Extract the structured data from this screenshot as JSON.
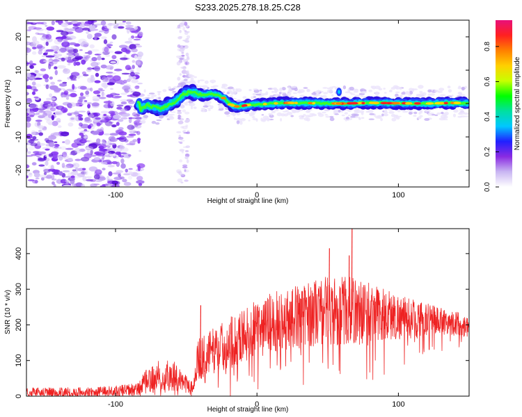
{
  "title": "S233.2025.278.18.25.C28",
  "chart_data": [
    {
      "type": "heatmap",
      "name": "spectrogram",
      "xlabel": "Height of straight line (km)",
      "ylabel": "Frequency (Hz)",
      "xlim": [
        -163,
        150
      ],
      "ylim": [
        -25,
        25
      ],
      "xticks": [
        -100,
        0,
        100
      ],
      "yticks": [
        -20,
        -10,
        0,
        10,
        20
      ],
      "colorbar": {
        "label": "Normalized spectral amplitude",
        "range": [
          0,
          0.95
        ],
        "ticks": [
          "0.0",
          "0.2",
          "0.4",
          "0.6",
          "0.8"
        ],
        "colors": [
          "#ffffff",
          "#c9b6f2",
          "#8a2be2",
          "#2020ff",
          "#00c8ff",
          "#00e0a0",
          "#00ff00",
          "#c8ff00",
          "#ffd000",
          "#ff8000",
          "#ff2020",
          "#e8107a"
        ]
      },
      "ridge": {
        "description_points_x": [
          -83,
          -78,
          -73,
          -68,
          -63,
          -58,
          -53,
          -48,
          -43,
          -38,
          -33,
          -28,
          -23,
          -18,
          -13,
          -8,
          0,
          20,
          40,
          60,
          80,
          100,
          120,
          140,
          148
        ],
        "description_points_y": [
          -2,
          -0.5,
          -1,
          -1.5,
          -0.5,
          0.5,
          2.5,
          3.5,
          3,
          2.5,
          3,
          2.5,
          1.5,
          -0.5,
          -1,
          -0.5,
          -0.3,
          0.2,
          0.1,
          0,
          0.2,
          0.1,
          0,
          0.2,
          0.1
        ]
      },
      "noise_region_x": [
        -163,
        -80
      ]
    },
    {
      "type": "line",
      "name": "snr",
      "xlabel": "Height of straight line (km)",
      "ylabel": "SNR (10 * v/v)",
      "xlim": [
        -163,
        150
      ],
      "ylim": [
        0,
        470
      ],
      "xticks": [
        -100,
        0,
        100
      ],
      "yticks": [
        0,
        100,
        200,
        300,
        400
      ],
      "color": "#ee2222",
      "envelope": {
        "x": [
          -163,
          -140,
          -110,
          -85,
          -78,
          -70,
          -60,
          -52,
          -45,
          -42,
          -38,
          -30,
          -20,
          -10,
          0,
          10,
          20,
          30,
          40,
          50,
          60,
          70,
          80,
          90,
          100,
          110,
          120,
          130,
          140,
          150
        ],
        "base": [
          10,
          10,
          12,
          18,
          40,
          55,
          60,
          40,
          25,
          100,
          110,
          130,
          150,
          170,
          190,
          205,
          215,
          225,
          235,
          240,
          240,
          238,
          232,
          228,
          222,
          218,
          215,
          212,
          205,
          195
        ],
        "spread": [
          14,
          14,
          14,
          18,
          35,
          45,
          45,
          25,
          15,
          60,
          60,
          65,
          70,
          75,
          80,
          85,
          85,
          90,
          95,
          100,
          100,
          95,
          90,
          80,
          65,
          55,
          45,
          40,
          35,
          30
        ]
      },
      "spikes": [
        {
          "x": -40,
          "y": 255
        },
        {
          "x": 51,
          "y": 415
        },
        {
          "x": 67,
          "y": 470
        },
        {
          "x": 65,
          "y": 395
        }
      ]
    }
  ]
}
